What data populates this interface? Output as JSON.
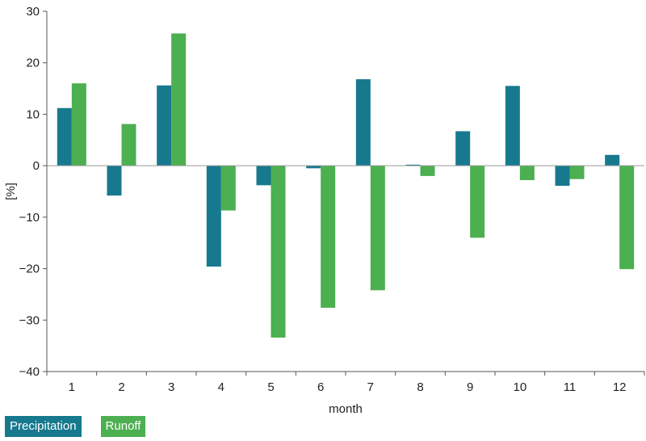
{
  "chart_data": {
    "type": "bar",
    "categories": [
      "1",
      "2",
      "3",
      "4",
      "5",
      "6",
      "7",
      "8",
      "9",
      "10",
      "11",
      "12"
    ],
    "series": [
      {
        "name": "Precipitation",
        "color": "#17798e",
        "values": [
          11.2,
          -5.8,
          15.6,
          -19.6,
          -3.8,
          -0.5,
          16.8,
          0.2,
          6.7,
          15.5,
          -3.9,
          2.1
        ]
      },
      {
        "name": "Runoff",
        "color": "#4caf50",
        "values": [
          16.0,
          8.1,
          25.7,
          -8.7,
          -33.4,
          -27.6,
          -24.2,
          -2.0,
          -14.0,
          -2.8,
          -2.6,
          -20.1
        ]
      }
    ],
    "xlabel": "month",
    "ylabel": "[%]",
    "ylim": [
      -40,
      30
    ],
    "yticks": [
      30,
      20,
      10,
      0,
      -10,
      -20,
      -30,
      -40
    ],
    "ytick_labels": [
      "30",
      "20",
      "10",
      "0",
      "−10",
      "−20",
      "−30",
      "−40"
    ],
    "grid": false,
    "legend_position": "bottom-left"
  }
}
